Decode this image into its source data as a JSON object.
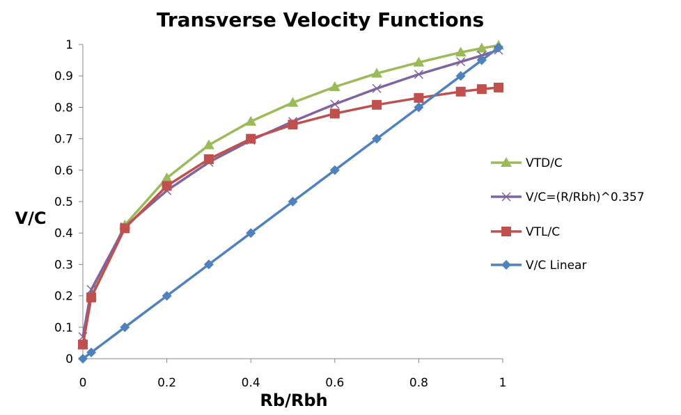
{
  "chart_data": {
    "type": "line",
    "title": "Transverse Velocity Functions",
    "xlabel": "Rb/Rbh",
    "ylabel": "V/C",
    "xlim": [
      0,
      1
    ],
    "ylim": [
      0,
      1
    ],
    "x_ticks": [
      "0",
      "0.2",
      "0.4",
      "0.6",
      "0.8",
      "1"
    ],
    "y_ticks": [
      "0",
      "0.1",
      "0.2",
      "0.3",
      "0.4",
      "0.5",
      "0.6",
      "0.7",
      "0.8",
      "0.9",
      "1"
    ],
    "legend_position": "right",
    "series": [
      {
        "name": "VTD/C",
        "color": "#9bbb59",
        "marker": "triangle",
        "points": [
          [
            0.0,
            0.045
          ],
          [
            0.02,
            0.2
          ],
          [
            0.1,
            0.425
          ],
          [
            0.2,
            0.575
          ],
          [
            0.3,
            0.68
          ],
          [
            0.4,
            0.755
          ],
          [
            0.5,
            0.815
          ],
          [
            0.6,
            0.865
          ],
          [
            0.7,
            0.908
          ],
          [
            0.8,
            0.943
          ],
          [
            0.9,
            0.975
          ],
          [
            0.95,
            0.988
          ],
          [
            0.99,
            0.997
          ]
        ]
      },
      {
        "name": "V/C=(R/Rbh)^0.357",
        "color": "#8064a2",
        "marker": "x",
        "points": [
          [
            0.0,
            0.07
          ],
          [
            0.02,
            0.22
          ],
          [
            0.1,
            0.42
          ],
          [
            0.2,
            0.535
          ],
          [
            0.3,
            0.625
          ],
          [
            0.4,
            0.695
          ],
          [
            0.5,
            0.755
          ],
          [
            0.6,
            0.81
          ],
          [
            0.7,
            0.86
          ],
          [
            0.8,
            0.905
          ],
          [
            0.9,
            0.945
          ],
          [
            0.95,
            0.965
          ],
          [
            0.99,
            0.982
          ]
        ]
      },
      {
        "name": "VTL/C",
        "color": "#c0504d",
        "marker": "square",
        "points": [
          [
            0.0,
            0.045
          ],
          [
            0.02,
            0.195
          ],
          [
            0.1,
            0.415
          ],
          [
            0.2,
            0.55
          ],
          [
            0.3,
            0.635
          ],
          [
            0.4,
            0.7
          ],
          [
            0.5,
            0.745
          ],
          [
            0.6,
            0.78
          ],
          [
            0.7,
            0.808
          ],
          [
            0.8,
            0.83
          ],
          [
            0.9,
            0.85
          ],
          [
            0.95,
            0.858
          ],
          [
            0.99,
            0.863
          ]
        ]
      },
      {
        "name": "V/C Linear",
        "color": "#4f81bd",
        "marker": "diamond",
        "points": [
          [
            0.0,
            0.0
          ],
          [
            0.02,
            0.02
          ],
          [
            0.1,
            0.1
          ],
          [
            0.2,
            0.2
          ],
          [
            0.3,
            0.3
          ],
          [
            0.4,
            0.4
          ],
          [
            0.5,
            0.5
          ],
          [
            0.6,
            0.6
          ],
          [
            0.7,
            0.7
          ],
          [
            0.8,
            0.8
          ],
          [
            0.9,
            0.9
          ],
          [
            0.95,
            0.95
          ],
          [
            0.99,
            0.99
          ]
        ]
      }
    ]
  }
}
